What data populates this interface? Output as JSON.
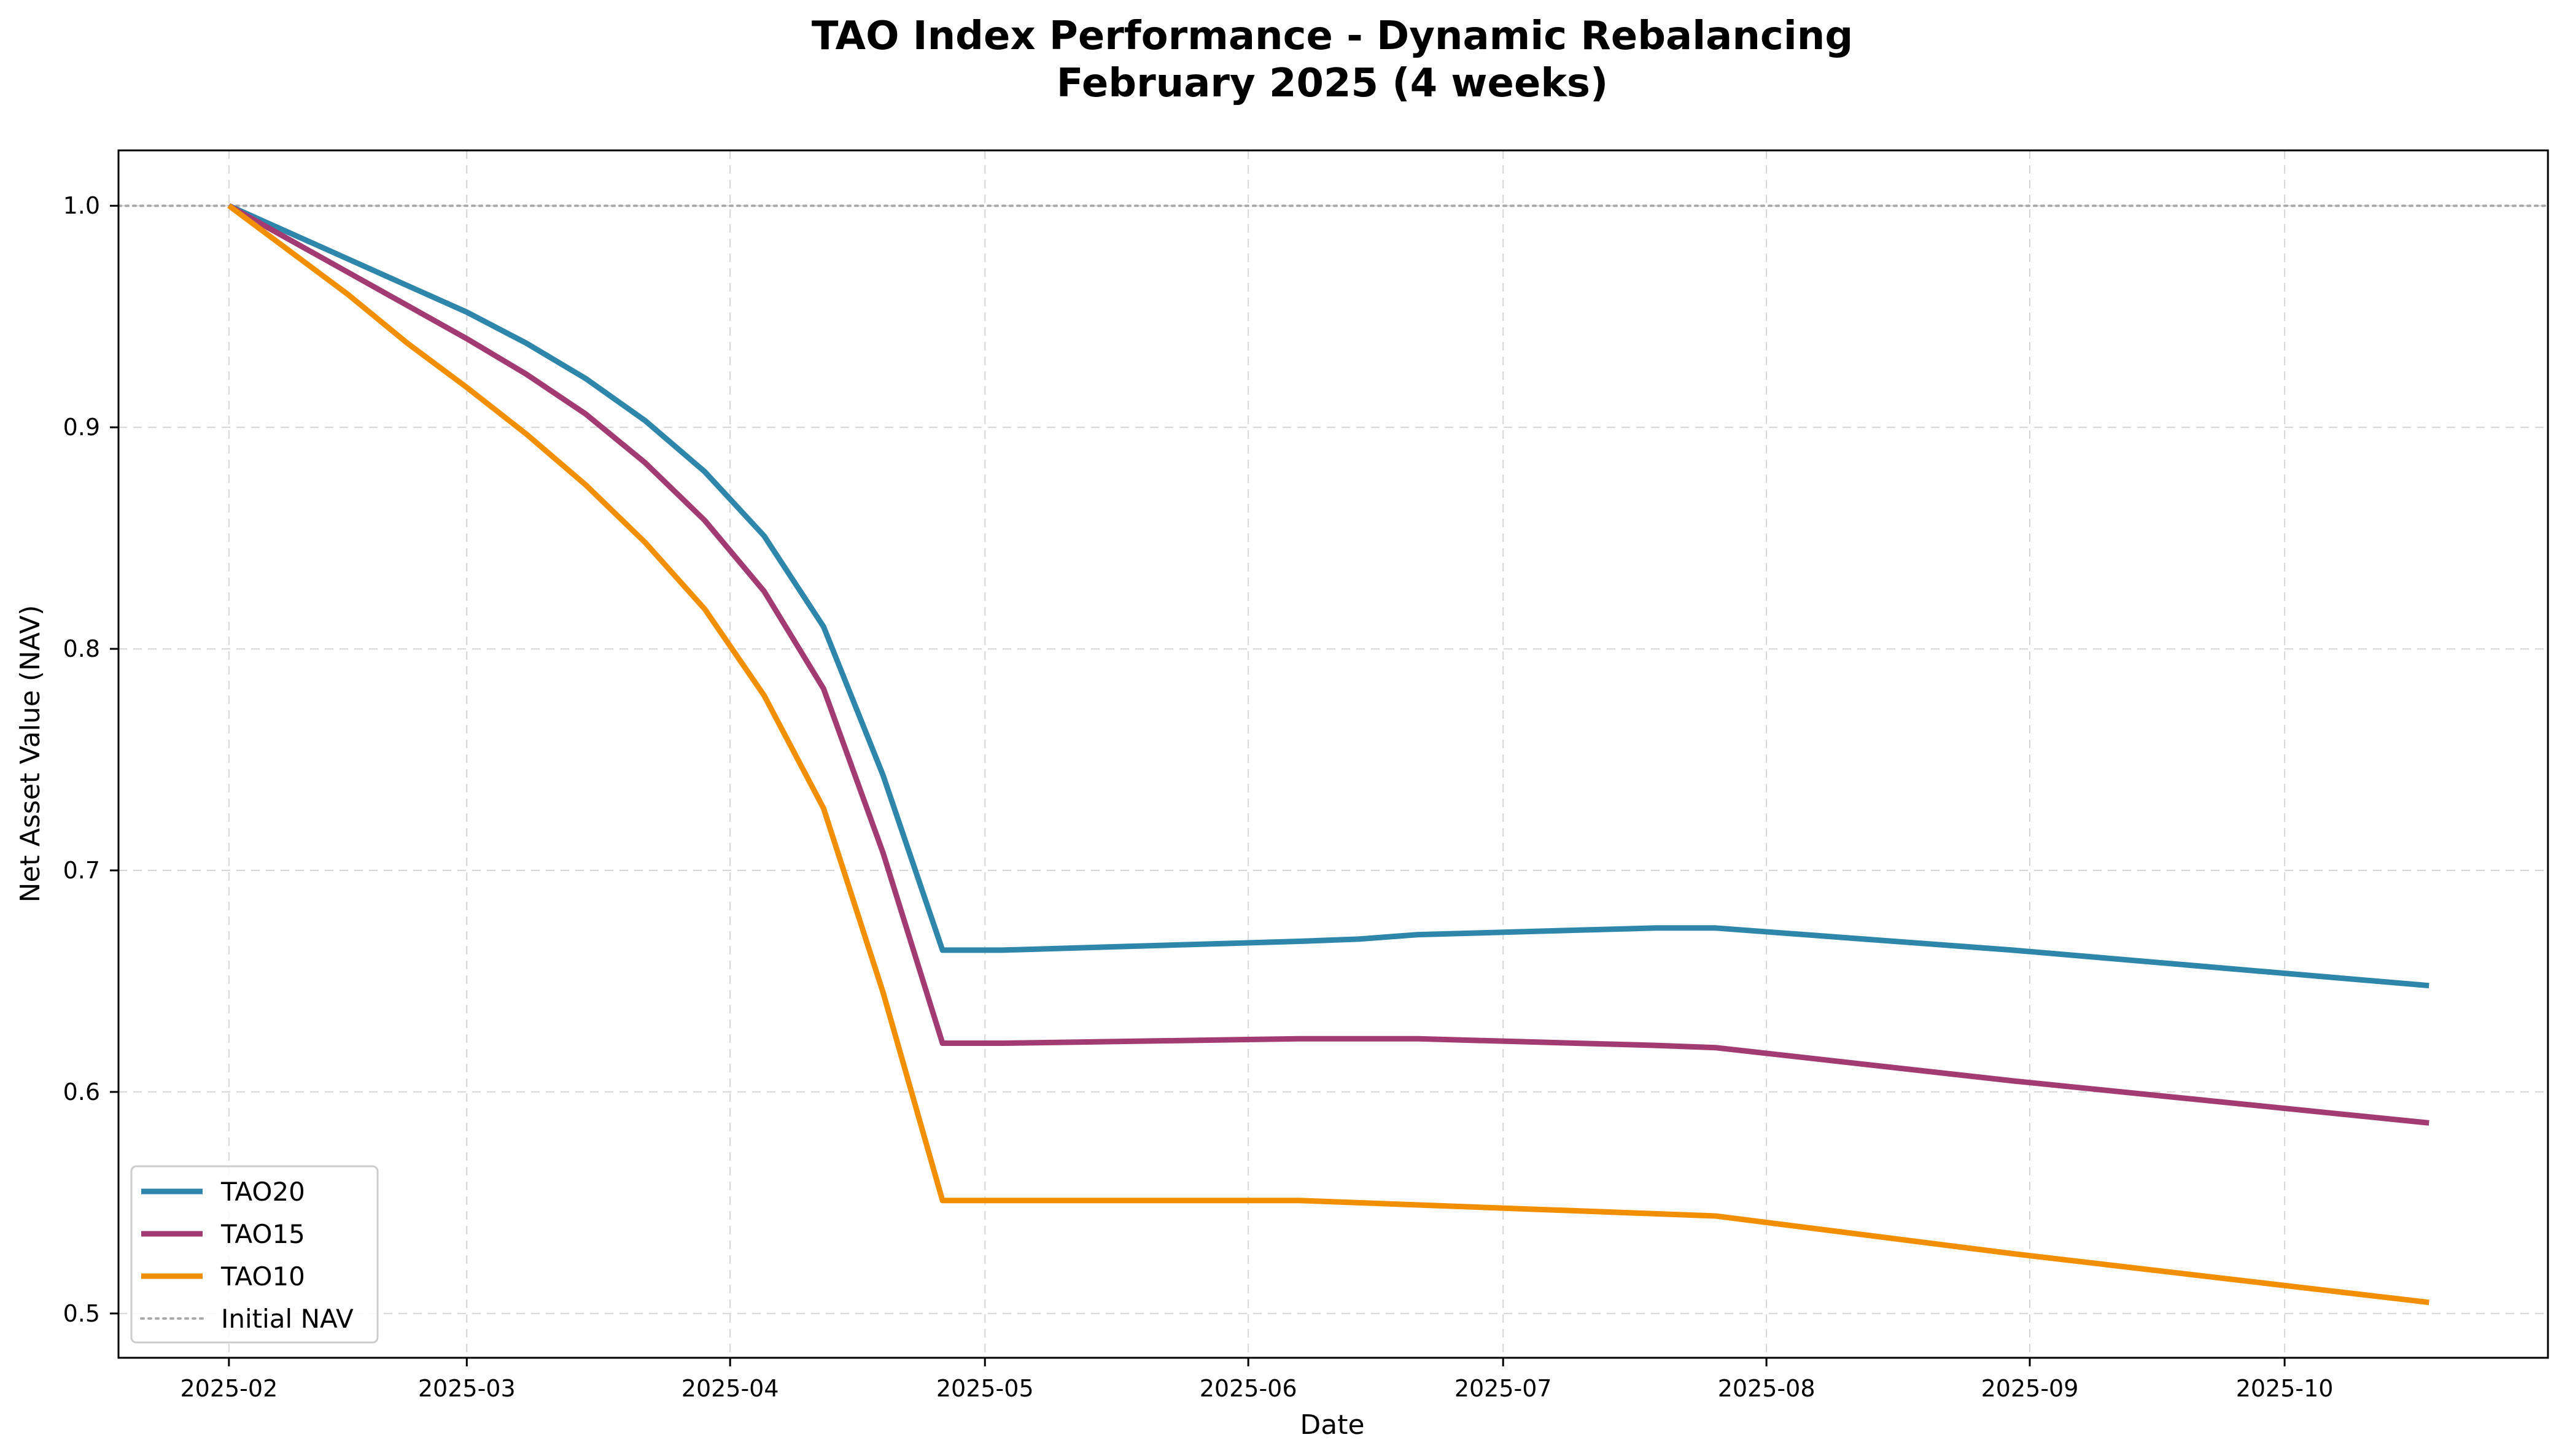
{
  "chart_data": {
    "type": "line",
    "title": "TAO Index Performance - Dynamic Rebalancing",
    "subtitle": "February 2025 (4 weeks)",
    "xlabel": "Date",
    "ylabel": "Net Asset Value (NAV)",
    "x_tick_labels": [
      "2025-02",
      "2025-03",
      "2025-04",
      "2025-05",
      "2025-06",
      "2025-07",
      "2025-08",
      "2025-09",
      "2025-10"
    ],
    "x_ticks": [
      "2025-02-01",
      "2025-03-01",
      "2025-04-01",
      "2025-05-01",
      "2025-06-01",
      "2025-07-01",
      "2025-08-01",
      "2025-09-01",
      "2025-10-01"
    ],
    "xlim": [
      "2025-01-19",
      "2025-11-01"
    ],
    "y_ticks": [
      0.5,
      0.6,
      0.7,
      0.8,
      0.9,
      1.0
    ],
    "y_tick_labels": [
      "0.5",
      "0.6",
      "0.7",
      "0.8",
      "0.9",
      "1.0"
    ],
    "ylim": [
      0.48,
      1.025
    ],
    "grid": true,
    "legend_position": "lower-left",
    "reference_line": {
      "name": "Initial NAV",
      "value": 1.0,
      "color": "#aaaaaa",
      "style": "dotted"
    },
    "x": [
      "2025-02-01",
      "2025-02-08",
      "2025-02-15",
      "2025-02-22",
      "2025-03-01",
      "2025-03-08",
      "2025-03-15",
      "2025-03-22",
      "2025-03-29",
      "2025-04-05",
      "2025-04-12",
      "2025-04-19",
      "2025-04-26",
      "2025-05-03",
      "2025-06-07",
      "2025-06-14",
      "2025-06-21",
      "2025-07-19",
      "2025-07-26",
      "2025-08-30",
      "2025-10-18"
    ],
    "series": [
      {
        "name": "TAO20",
        "color": "#2e86ab",
        "values": [
          1.0,
          0.988,
          0.976,
          0.964,
          0.952,
          0.938,
          0.922,
          0.903,
          0.88,
          0.851,
          0.81,
          0.743,
          0.664,
          0.664,
          0.668,
          0.669,
          0.671,
          0.674,
          0.674,
          0.664,
          0.648
        ]
      },
      {
        "name": "TAO15",
        "color": "#a23b72",
        "values": [
          1.0,
          0.985,
          0.97,
          0.955,
          0.94,
          0.924,
          0.906,
          0.884,
          0.858,
          0.826,
          0.782,
          0.708,
          0.622,
          0.622,
          0.624,
          0.624,
          0.624,
          0.621,
          0.62,
          0.605,
          0.586
        ]
      },
      {
        "name": "TAO10",
        "color": "#f18f01",
        "values": [
          1.0,
          0.98,
          0.96,
          0.938,
          0.918,
          0.897,
          0.874,
          0.848,
          0.818,
          0.779,
          0.728,
          0.645,
          0.551,
          0.551,
          0.551,
          0.55,
          0.549,
          0.545,
          0.544,
          0.527,
          0.505
        ]
      }
    ]
  }
}
